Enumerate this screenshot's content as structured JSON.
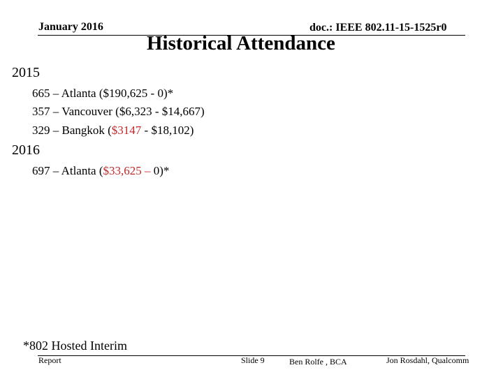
{
  "header": {
    "date": "January 2016",
    "doc_id": "doc.: IEEE 802.11-15-1525r0"
  },
  "title": "Historical Attendance",
  "sections": [
    {
      "year": "2015",
      "lines": [
        {
          "count": "665",
          "sep": " – ",
          "place": "Atlanta (",
          "v1": "$190,625",
          "mid": " - ",
          "v2": "0",
          "tail": ")*"
        },
        {
          "count": "357",
          "sep": " – ",
          "place": "Vancouver (",
          "v1": "$6,323",
          "mid": " - ",
          "v2": "$14,667",
          "tail": ")"
        },
        {
          "count": "329",
          "sep": " – ",
          "place": "Bangkok (",
          "v1": "$3147",
          "mid": " - ",
          "v2": "$18,102",
          "tail": ")"
        }
      ]
    },
    {
      "year": "2016",
      "lines": [
        {
          "count": "697",
          "sep": " – ",
          "place": "Atlanta (",
          "v1": "$33,625",
          "mid": " – ",
          "v2": "0",
          "tail": ")*"
        }
      ]
    }
  ],
  "footnote": "*802 Hosted Interim",
  "footer": {
    "left": "Report",
    "slide": "Slide 9",
    "center": "Ben Rolfe , BCA",
    "right": "Jon Rosdahl, Qualcomm"
  },
  "colors": {
    "highlight": "#c0282a",
    "text": "#000000",
    "background": "#ffffff"
  }
}
